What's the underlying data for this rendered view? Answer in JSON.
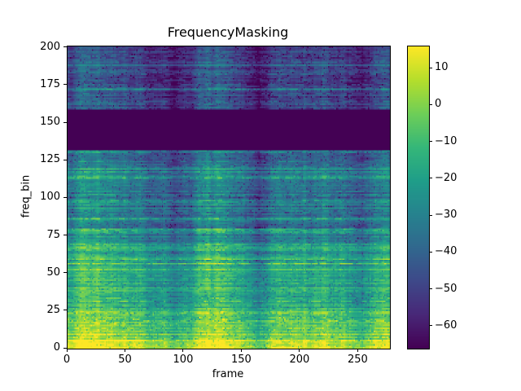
{
  "chart_data": {
    "type": "heatmap",
    "title": "FrequencyMasking",
    "xlabel": "frame",
    "ylabel": "freq_bin",
    "x_range": [
      0,
      277
    ],
    "y_range": [
      0,
      201
    ],
    "xticks": [
      0,
      50,
      100,
      150,
      200,
      250
    ],
    "yticks": [
      0,
      25,
      50,
      75,
      100,
      125,
      150,
      175,
      200
    ],
    "colorbar_ticks": [
      10,
      0,
      -10,
      -20,
      -30,
      -40,
      -50,
      -60
    ],
    "value_range": [
      -66,
      16
    ],
    "colormap": "viridis",
    "colormap_stops": [
      "#440154",
      "#482878",
      "#3e4989",
      "#31688e",
      "#26828e",
      "#1f9e89",
      "#35b779",
      "#6ece58",
      "#b4de2c",
      "#fde725"
    ],
    "masked_band": {
      "freq_bin_start": 132,
      "freq_bin_end": 158,
      "value": -66
    },
    "description": "Spectrogram (dB scale) with a frequency-masking augmentation: bins ~132-158 are zeroed to the minimum value; energy is highest in the low frequency bins and decreases toward high bins; horizontal harmonic streaks throughout.",
    "legend": "none",
    "grid": false
  },
  "layout_text": {
    "background": "#ffffff",
    "foreground": "#000000"
  }
}
